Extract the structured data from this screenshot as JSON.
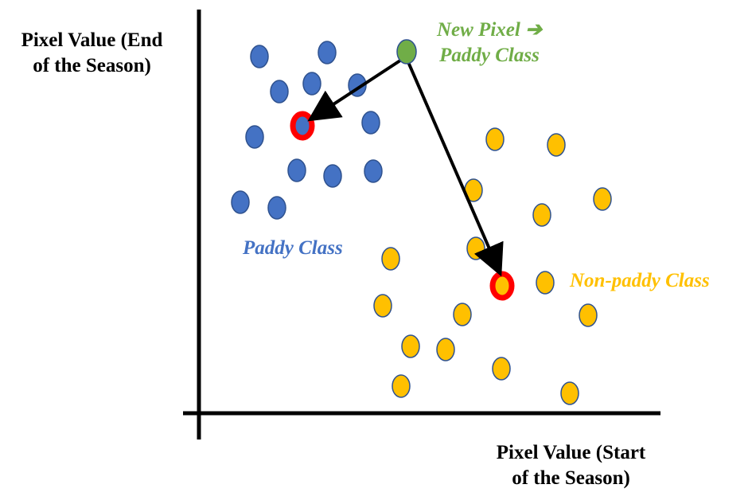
{
  "axes": {
    "y_label_line1": "Pixel Value (End",
    "y_label_line2": "of  the Season)",
    "x_label_line1": "Pixel Value (Start",
    "x_label_line2": "of  the Season)"
  },
  "labels": {
    "new_pixel_line1": "New Pixel ➔",
    "new_pixel_line2": "Paddy Class",
    "paddy_class": "Paddy Class",
    "non_paddy_class": "Non-paddy Class"
  },
  "colors": {
    "paddy": "#4472C4",
    "non_paddy": "#FFC000",
    "new_pixel": "#70AD47",
    "nearest_ring": "#FF0000",
    "axis": "#000000",
    "paddy_text": "#4472C4",
    "non_paddy_text": "#FFC000",
    "new_pixel_text": "#70AD47"
  }
}
